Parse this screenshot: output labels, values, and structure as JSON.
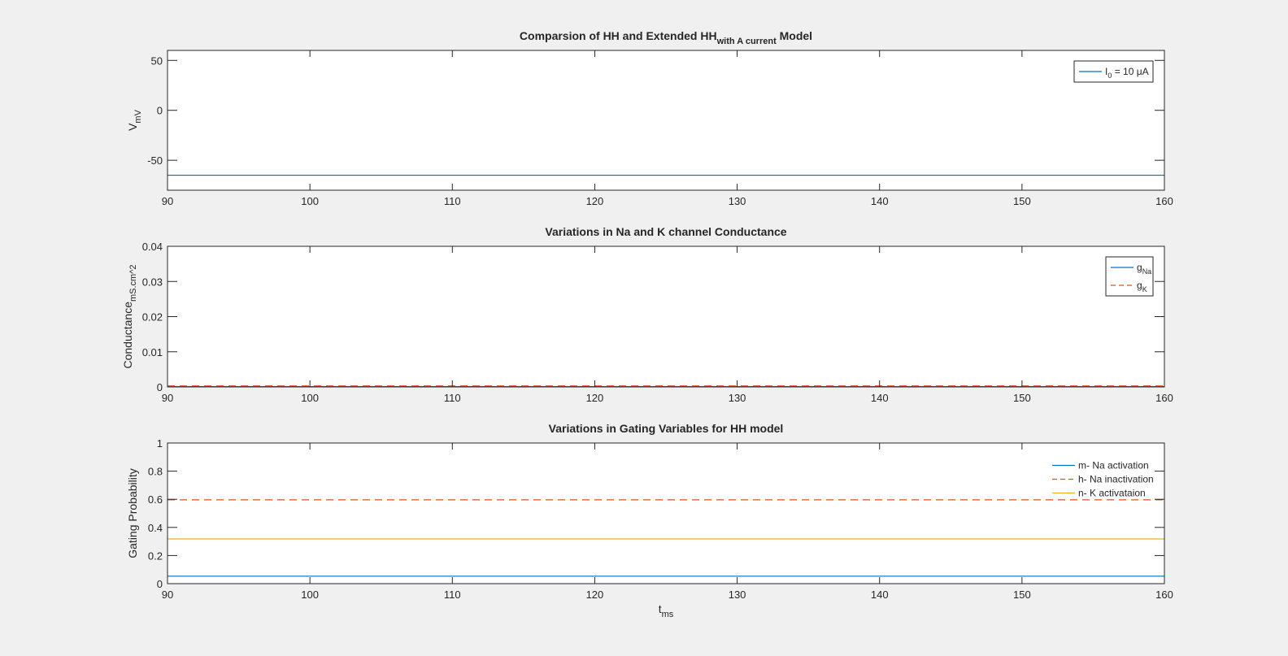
{
  "chart_data": [
    {
      "type": "line",
      "title": "Comparsion of HH and Extended HH",
      "title_sub": "with A current",
      "title_end": " Model",
      "ylabel": "V",
      "ylabel_sub": "mV",
      "xlim": [
        90,
        160
      ],
      "ylim": [
        -80,
        60
      ],
      "xticks": [
        90,
        100,
        110,
        120,
        130,
        140,
        150,
        160
      ],
      "xtick_labels": [
        "90",
        "100",
        "110",
        "120",
        "130",
        "140",
        "150",
        "160"
      ],
      "yticks": [
        -50,
        0,
        50
      ],
      "ytick_labels": [
        "-50",
        "0",
        "50"
      ],
      "grid": false,
      "legend_position": "top-right",
      "series": [
        {
          "name": "I",
          "name_sub": "0",
          "name_rest": " = 10 μA",
          "color": "#0072BD",
          "dash": "solid",
          "x": [
            90,
            160
          ],
          "y": [
            -65,
            -65
          ]
        }
      ]
    },
    {
      "type": "line",
      "title": "Variations in Na and K channel Conductance",
      "ylabel": "Conductance",
      "ylabel_sub": "mS.cm^2",
      "xlim": [
        90,
        160
      ],
      "ylim": [
        0,
        0.04
      ],
      "xticks": [
        90,
        100,
        110,
        120,
        130,
        140,
        150,
        160
      ],
      "xtick_labels": [
        "90",
        "100",
        "110",
        "120",
        "130",
        "140",
        "150",
        "160"
      ],
      "yticks": [
        0,
        0.01,
        0.02,
        0.03,
        0.04
      ],
      "ytick_labels": [
        "0",
        "0.01",
        "0.02",
        "0.03",
        "0.04"
      ],
      "grid": false,
      "legend_position": "top-right",
      "series": [
        {
          "name": "g",
          "name_sub": "Na",
          "color": "#0072BD",
          "dash": "solid",
          "x": [
            90,
            160
          ],
          "y": [
            0.0001,
            0.0001
          ]
        },
        {
          "name": "g",
          "name_sub": "K",
          "color": "#D95319",
          "dash": "dashed",
          "x": [
            90,
            160
          ],
          "y": [
            0.0003,
            0.0003
          ]
        }
      ]
    },
    {
      "type": "line",
      "title": "Variations in Gating Variables for HH model",
      "ylabel": "Gating Probability",
      "xlabel": "t",
      "xlabel_sub": "ms",
      "xlim": [
        90,
        160
      ],
      "ylim": [
        0,
        1
      ],
      "xticks": [
        90,
        100,
        110,
        120,
        130,
        140,
        150,
        160
      ],
      "xtick_labels": [
        "90",
        "100",
        "110",
        "120",
        "130",
        "140",
        "150",
        "160"
      ],
      "yticks": [
        0,
        0.2,
        0.4,
        0.6,
        0.8,
        1
      ],
      "ytick_labels": [
        "0",
        "0.2",
        "0.4",
        "0.6",
        "0.8",
        "1"
      ],
      "grid": false,
      "legend_position": "top-right",
      "series": [
        {
          "name": "m- Na activation",
          "color": "#0072BD",
          "dash": "solid",
          "x": [
            90,
            160
          ],
          "y": [
            0.053,
            0.053
          ]
        },
        {
          "name": "h- Na inactivation",
          "color": "#D95319",
          "dash": "dashed",
          "x": [
            90,
            160
          ],
          "y": [
            0.596,
            0.596
          ]
        },
        {
          "name": "n- K activataion",
          "color": "#EDB120",
          "dash": "solid",
          "x": [
            90,
            160
          ],
          "y": [
            0.318,
            0.318
          ]
        }
      ]
    }
  ]
}
